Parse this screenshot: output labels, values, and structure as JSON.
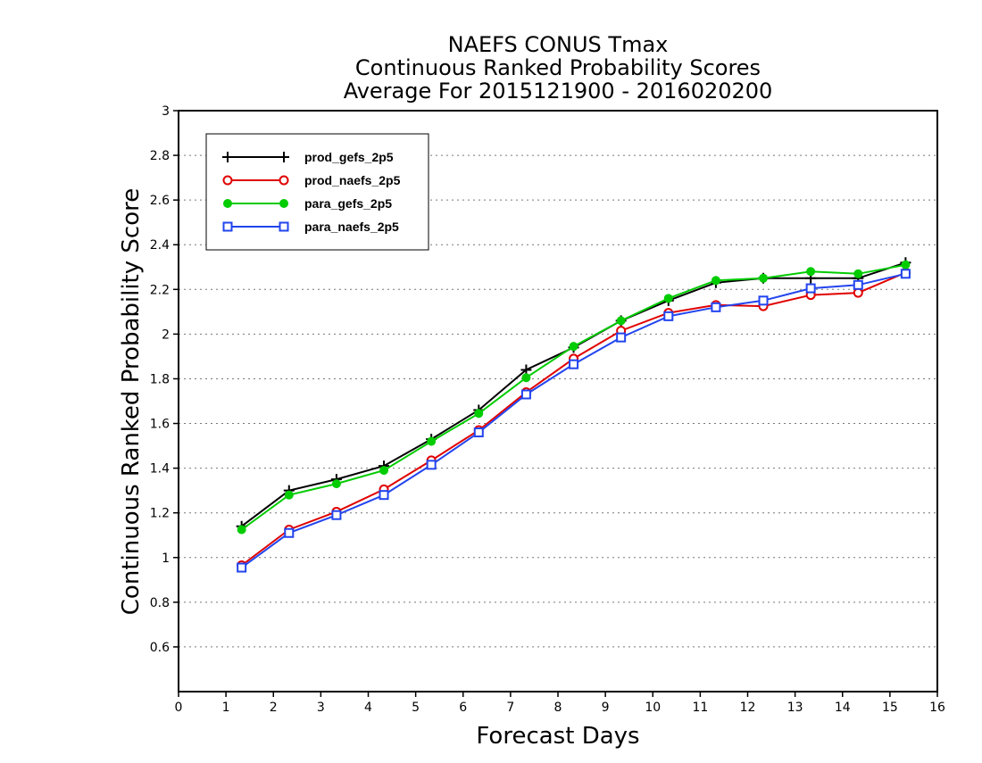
{
  "chart_data": {
    "type": "line",
    "title": [
      "NAEFS CONUS Tmax",
      "Continuous Ranked Probability Scores",
      "Average For 2015121900 - 2016020200"
    ],
    "xlabel": "Forecast Days",
    "ylabel": "Continuous Ranked Probability Score",
    "xlim": [
      0,
      16
    ],
    "ylim": [
      0.4,
      3
    ],
    "xticks": [
      "0",
      "1",
      "2",
      "3",
      "4",
      "5",
      "6",
      "7",
      "8",
      "9",
      "10",
      "11",
      "12",
      "13",
      "14",
      "15",
      "16"
    ],
    "yticks": [
      "0.6",
      "0.8",
      "1",
      "1.2",
      "1.4",
      "1.6",
      "1.8",
      "2",
      "2.2",
      "2.4",
      "2.6",
      "2.8",
      "3"
    ],
    "grid": "horizontal dotted",
    "legend_position": "top-left",
    "series": [
      {
        "name": "prod_gefs_2p5",
        "color": "#000000",
        "marker": "plus",
        "x": [
          1.33,
          2.33,
          3.33,
          4.33,
          5.33,
          6.33,
          7.33,
          8.33,
          9.33,
          10.33,
          11.33,
          12.33,
          13.33,
          14.33,
          15.33
        ],
        "values": [
          1.14,
          1.3,
          1.35,
          1.41,
          1.53,
          1.66,
          1.84,
          1.94,
          2.06,
          2.15,
          2.23,
          2.25,
          2.25,
          2.25,
          2.32
        ]
      },
      {
        "name": "prod_naefs_2p5",
        "color": "#e00000",
        "marker": "circle",
        "x": [
          1.33,
          2.33,
          3.33,
          4.33,
          5.33,
          6.33,
          7.33,
          8.33,
          9.33,
          10.33,
          11.33,
          12.33,
          13.33,
          14.33,
          15.33
        ],
        "values": [
          0.965,
          1.125,
          1.205,
          1.305,
          1.435,
          1.57,
          1.74,
          1.89,
          2.015,
          2.095,
          2.13,
          2.125,
          2.175,
          2.185,
          2.275
        ]
      },
      {
        "name": "para_gefs_2p5",
        "color": "#00cc00",
        "marker": "filled-circle",
        "x": [
          1.33,
          2.33,
          3.33,
          4.33,
          5.33,
          6.33,
          7.33,
          8.33,
          9.33,
          10.33,
          11.33,
          12.33,
          13.33,
          14.33,
          15.33
        ],
        "values": [
          1.125,
          1.28,
          1.33,
          1.39,
          1.52,
          1.645,
          1.805,
          1.945,
          2.06,
          2.16,
          2.24,
          2.25,
          2.28,
          2.27,
          2.31
        ]
      },
      {
        "name": "para_naefs_2p5",
        "color": "#2244ee",
        "marker": "square",
        "x": [
          1.33,
          2.33,
          3.33,
          4.33,
          5.33,
          6.33,
          7.33,
          8.33,
          9.33,
          10.33,
          11.33,
          12.33,
          13.33,
          14.33,
          15.33
        ],
        "values": [
          0.955,
          1.11,
          1.19,
          1.28,
          1.415,
          1.56,
          1.73,
          1.865,
          1.985,
          2.08,
          2.12,
          2.15,
          2.205,
          2.22,
          2.27
        ]
      }
    ]
  }
}
